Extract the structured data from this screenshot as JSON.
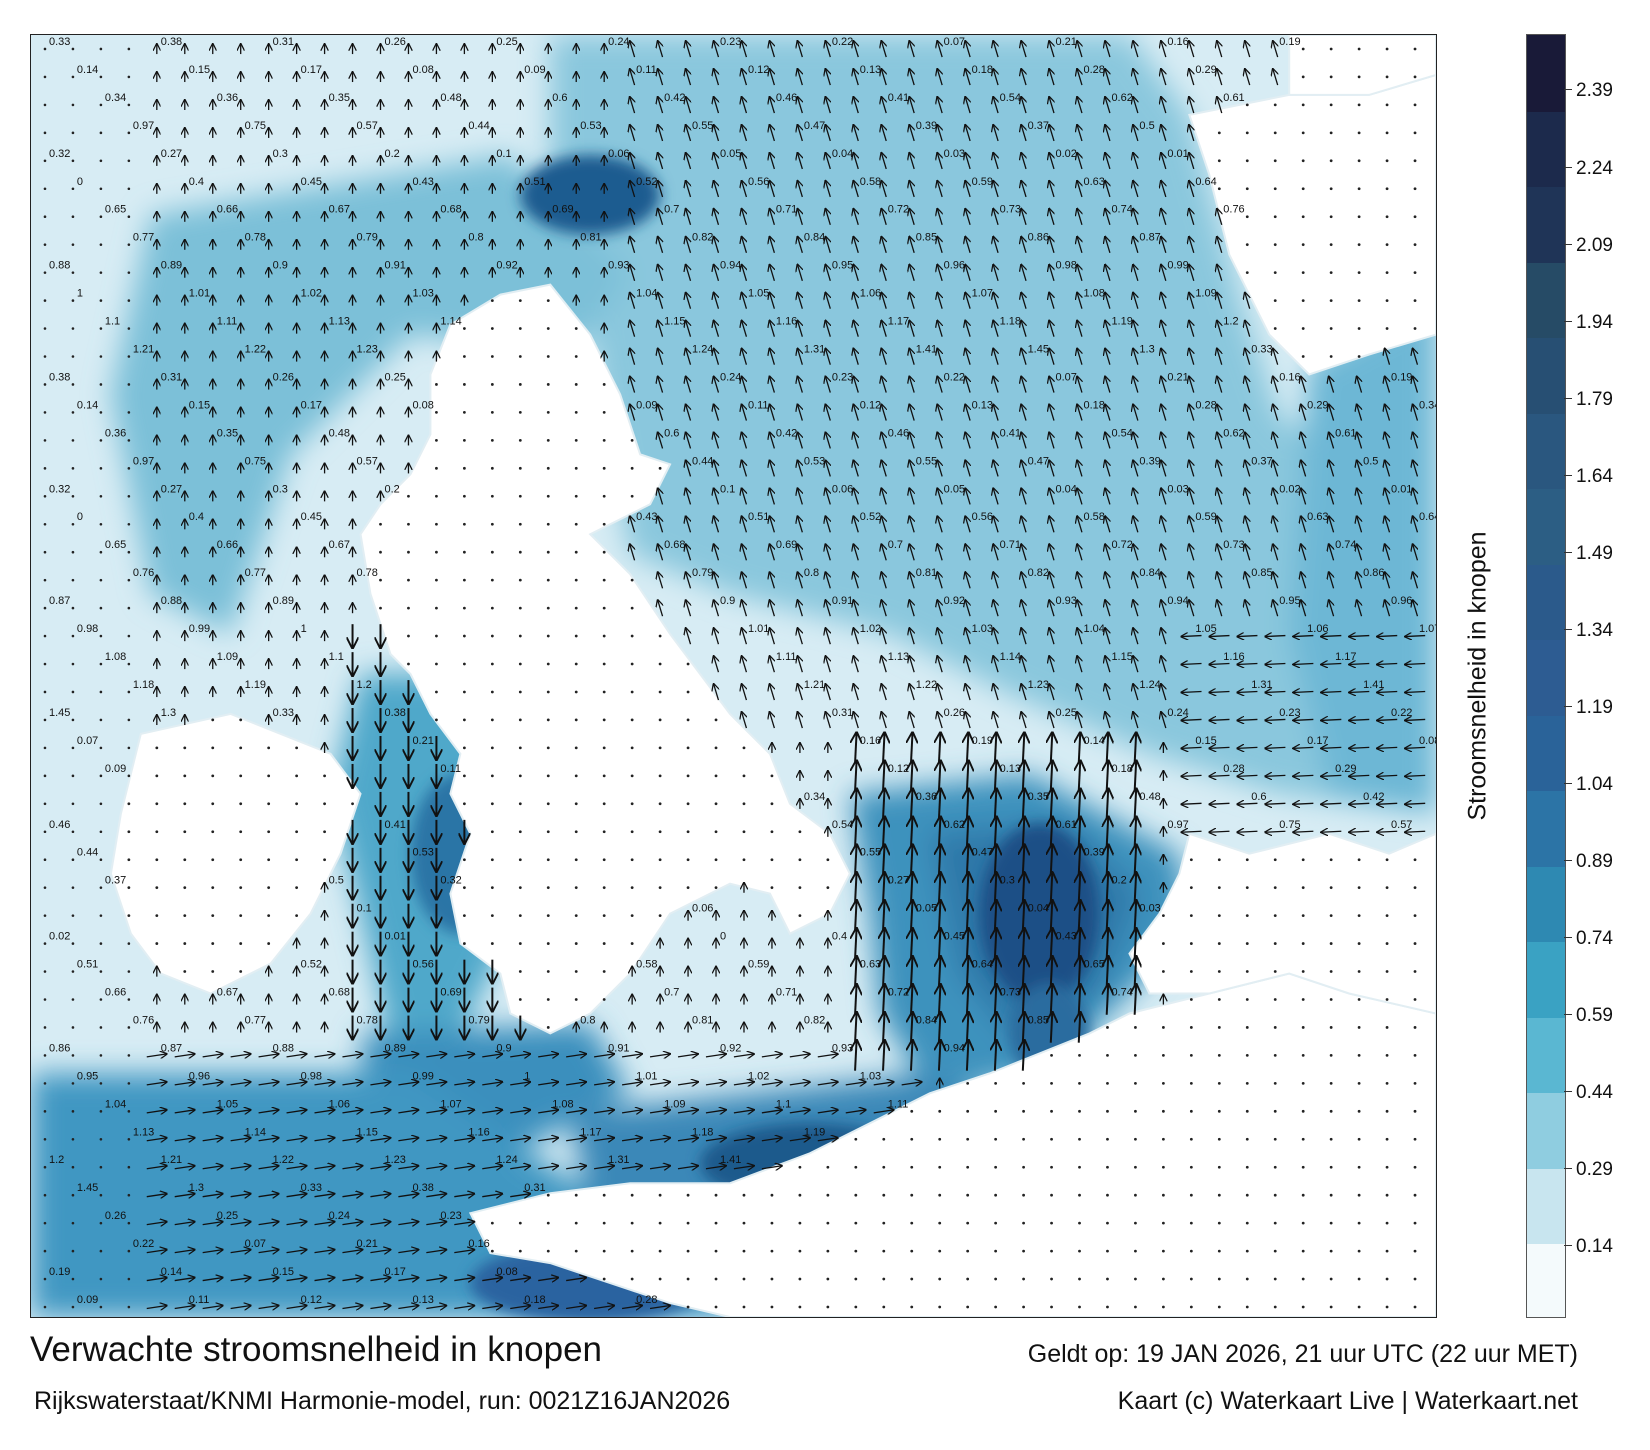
{
  "title": "Verwachte stroomsnelheid in knopen",
  "subtitle": "Rijkswaterstaat/KNMI Harmonie-model, run: 0021Z16JAN2026",
  "valid_time": "Geldt op: 19 JAN 2026, 21 uur UTC (22 uur MET)",
  "credit": "Kaart (c) Waterkaart Live | Waterkaart.net",
  "colorbar": {
    "label": "Stroomsnelheid in knopen",
    "ticks": [
      "0.14",
      "0.29",
      "0.44",
      "0.59",
      "0.74",
      "0.89",
      "1.04",
      "1.19",
      "1.34",
      "1.49",
      "1.64",
      "1.79",
      "1.94",
      "2.09",
      "2.24",
      "2.39"
    ],
    "min": 0,
    "max": 2.5,
    "colors": [
      "#f4fafc",
      "#c8e5ef",
      "#8fcde0",
      "#5ab7d2",
      "#3aa2c3",
      "#2e89b2",
      "#2c74a6",
      "#2a6399",
      "#2d5c92",
      "#2b5a8b",
      "#2c5e84",
      "#2a577f",
      "#274f73",
      "#264b66",
      "#1f3457",
      "#1c2a4c",
      "#191a38"
    ]
  },
  "map": {
    "colors": {
      "land": "#ffffff",
      "water_low": "#e6f2f7",
      "water_mid": "#7fc2da",
      "water_high": "#2f86b2",
      "water_peak": "#1d4f86",
      "arrow": "#111111",
      "label": "#111111"
    },
    "vector_labels": [
      {
        "text": "0.33"
      },
      {
        "text": "0.38"
      },
      {
        "text": "0.31"
      },
      {
        "text": "0.26"
      },
      {
        "text": "0.25"
      },
      {
        "text": "0.24"
      },
      {
        "text": "0.23"
      },
      {
        "text": "0.22"
      },
      {
        "text": "0.07"
      },
      {
        "text": "0.21"
      },
      {
        "text": "0.16"
      },
      {
        "text": "0.19"
      },
      {
        "text": "0.14"
      },
      {
        "text": "0.15"
      },
      {
        "text": "0.17"
      },
      {
        "text": "0.08"
      },
      {
        "text": "0.09"
      },
      {
        "text": "0.11"
      },
      {
        "text": "0.12"
      },
      {
        "text": "0.13"
      },
      {
        "text": "0.18"
      },
      {
        "text": "0.28"
      },
      {
        "text": "0.29"
      },
      {
        "text": "0.34"
      },
      {
        "text": "0.36"
      },
      {
        "text": "0.35"
      },
      {
        "text": "0.48"
      },
      {
        "text": "0.6"
      },
      {
        "text": "0.42"
      },
      {
        "text": "0.46"
      },
      {
        "text": "0.41"
      },
      {
        "text": "0.54"
      },
      {
        "text": "0.62"
      },
      {
        "text": "0.61"
      },
      {
        "text": "0.97"
      },
      {
        "text": "0.75"
      },
      {
        "text": "0.57"
      },
      {
        "text": "0.44"
      },
      {
        "text": "0.53"
      },
      {
        "text": "0.55"
      },
      {
        "text": "0.47"
      },
      {
        "text": "0.39"
      },
      {
        "text": "0.37"
      },
      {
        "text": "0.5"
      },
      {
        "text": "0.32"
      },
      {
        "text": "0.27"
      },
      {
        "text": "0.3"
      },
      {
        "text": "0.2"
      },
      {
        "text": "0.1"
      },
      {
        "text": "0.06"
      },
      {
        "text": "0.05"
      },
      {
        "text": "0.04"
      },
      {
        "text": "0.03"
      },
      {
        "text": "0.02"
      },
      {
        "text": "0.01"
      },
      {
        "text": "0"
      },
      {
        "text": "0.4"
      },
      {
        "text": "0.45"
      },
      {
        "text": "0.43"
      },
      {
        "text": "0.51"
      },
      {
        "text": "0.52"
      },
      {
        "text": "0.56"
      },
      {
        "text": "0.58"
      },
      {
        "text": "0.59"
      },
      {
        "text": "0.63"
      },
      {
        "text": "0.64"
      },
      {
        "text": "0.65"
      },
      {
        "text": "0.66"
      },
      {
        "text": "0.67"
      },
      {
        "text": "0.68"
      },
      {
        "text": "0.69"
      },
      {
        "text": "0.7"
      },
      {
        "text": "0.71"
      },
      {
        "text": "0.72"
      },
      {
        "text": "0.73"
      },
      {
        "text": "0.74"
      },
      {
        "text": "0.76"
      },
      {
        "text": "0.77"
      },
      {
        "text": "0.78"
      },
      {
        "text": "0.79"
      },
      {
        "text": "0.8"
      },
      {
        "text": "0.81"
      },
      {
        "text": "0.82"
      },
      {
        "text": "0.84"
      },
      {
        "text": "0.85"
      },
      {
        "text": "0.86"
      },
      {
        "text": "0.87"
      },
      {
        "text": "0.88"
      },
      {
        "text": "0.89"
      },
      {
        "text": "0.9"
      },
      {
        "text": "0.91"
      },
      {
        "text": "0.92"
      },
      {
        "text": "0.93"
      },
      {
        "text": "0.94"
      },
      {
        "text": "0.95"
      },
      {
        "text": "0.96"
      },
      {
        "text": "0.98"
      },
      {
        "text": "0.99"
      },
      {
        "text": "1"
      },
      {
        "text": "1.01"
      },
      {
        "text": "1.02"
      },
      {
        "text": "1.03"
      },
      {
        "text": "1.04"
      },
      {
        "text": "1.05"
      },
      {
        "text": "1.06"
      },
      {
        "text": "1.07"
      },
      {
        "text": "1.08"
      },
      {
        "text": "1.09"
      },
      {
        "text": "1.1"
      },
      {
        "text": "1.11"
      },
      {
        "text": "1.13"
      },
      {
        "text": "1.14"
      },
      {
        "text": "1.15"
      },
      {
        "text": "1.16"
      },
      {
        "text": "1.17"
      },
      {
        "text": "1.18"
      },
      {
        "text": "1.19"
      },
      {
        "text": "1.2"
      },
      {
        "text": "1.21"
      },
      {
        "text": "1.22"
      },
      {
        "text": "1.23"
      },
      {
        "text": "1.24"
      },
      {
        "text": "1.31"
      },
      {
        "text": "1.41"
      },
      {
        "text": "1.45"
      },
      {
        "text": "1.3"
      }
    ]
  }
}
